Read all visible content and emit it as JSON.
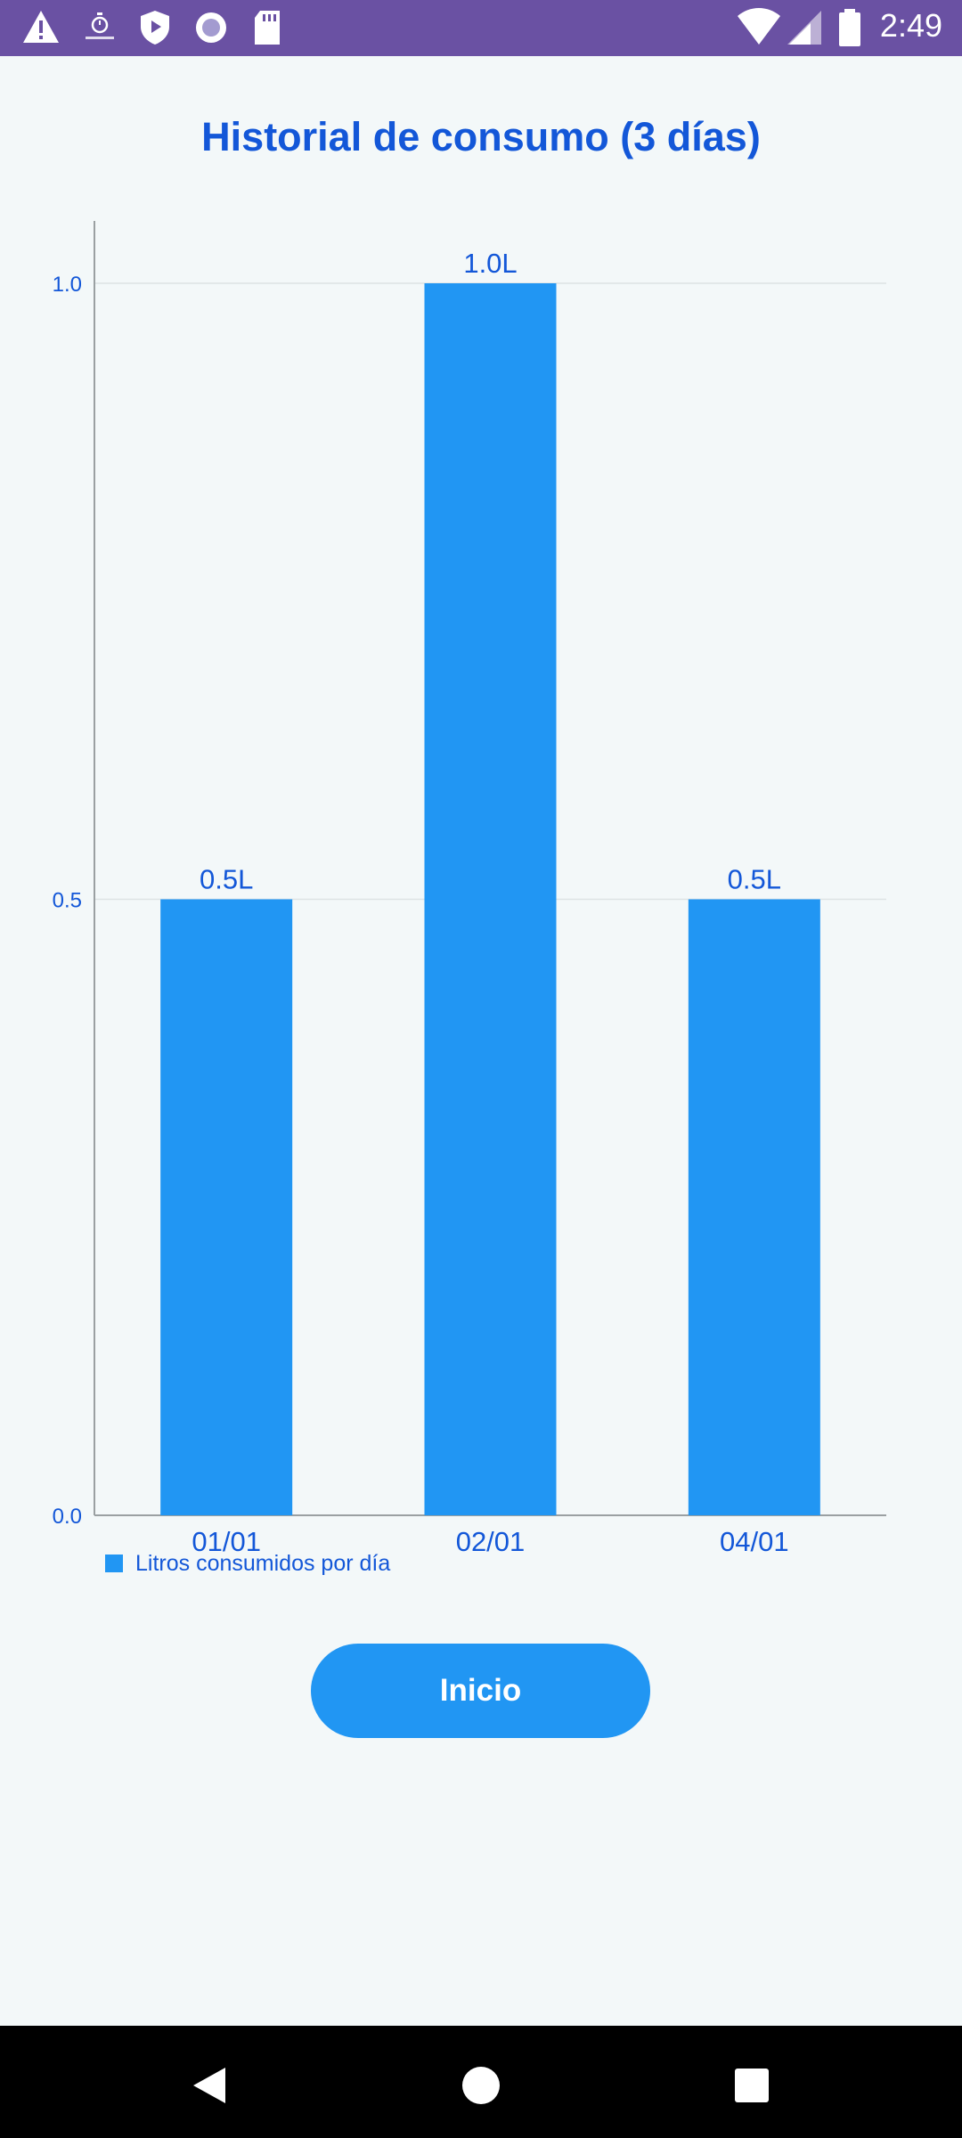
{
  "status_bar": {
    "time": "2:49",
    "left_icons": [
      "warning-icon",
      "stopwatch-icon",
      "shield-play-icon",
      "circle-record-icon",
      "sd-card-icon"
    ],
    "right_icons": [
      "wifi-icon",
      "signal-icon",
      "battery-icon"
    ]
  },
  "screen": {
    "title": "Historial de consumo (3 días)",
    "legend_label": "Litros consumidos por día",
    "button_label": "Inicio"
  },
  "chart_data": {
    "type": "bar",
    "categories": [
      "01/01",
      "02/01",
      "04/01"
    ],
    "series": [
      {
        "name": "Litros consumidos por día",
        "values": [
          0.5,
          1.0,
          0.5
        ]
      }
    ],
    "data_labels": [
      "0.5L",
      "1.0L",
      "0.5L"
    ],
    "y_ticks": [
      "0.0",
      "0.5",
      "1.0"
    ],
    "ylim": [
      0,
      1.05
    ],
    "title": "",
    "xlabel": "",
    "ylabel": "",
    "grid": true,
    "legend_position": "bottom-left"
  },
  "colors": {
    "status_bar": "#6a51a3",
    "background": "#f3f8f9",
    "accent": "#2196f3",
    "text_blue": "#1357d8",
    "nav_bar": "#000000"
  },
  "navigation_bar": {
    "icons": [
      "back-icon",
      "home-icon",
      "recents-icon"
    ]
  }
}
